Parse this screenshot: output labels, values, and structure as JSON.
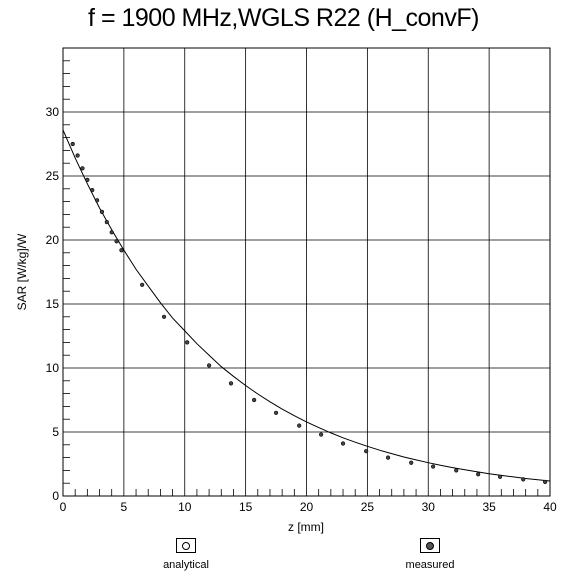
{
  "chart_data": {
    "type": "line",
    "title": "f = 1900 MHz,WGLS R22 (H_convF)",
    "xlabel": "z [mm]",
    "ylabel": "SAR [W/kg]/W",
    "xlim": [
      0,
      40
    ],
    "ylim": [
      0,
      35
    ],
    "x_ticks": [
      0,
      5,
      10,
      15,
      20,
      25,
      30,
      35,
      40
    ],
    "y_ticks": [
      0,
      5,
      10,
      15,
      20,
      25,
      30
    ],
    "grid": true,
    "legend_position": "bottom",
    "series": [
      {
        "name": "analytical",
        "style": "line",
        "x": [
          0,
          1,
          2,
          3,
          4,
          5,
          6,
          7,
          8,
          9,
          10,
          11,
          12,
          13,
          14,
          15,
          16,
          17,
          18,
          19,
          20,
          21,
          22,
          23,
          24,
          25,
          26,
          27,
          28,
          29,
          30,
          31,
          32,
          33,
          34,
          35,
          36,
          37,
          38,
          39,
          40
        ],
        "y": [
          28.6,
          26.4,
          24.4,
          22.5,
          20.8,
          19.2,
          17.7,
          16.4,
          15.1,
          13.9,
          12.9,
          11.9,
          11.0,
          10.1,
          9.35,
          8.63,
          7.97,
          7.36,
          6.79,
          6.27,
          5.79,
          5.34,
          4.93,
          4.55,
          4.2,
          3.88,
          3.58,
          3.31,
          3.05,
          2.82,
          2.6,
          2.4,
          2.22,
          2.05,
          1.89,
          1.74,
          1.61,
          1.49,
          1.37,
          1.27,
          1.17
        ]
      },
      {
        "name": "measured",
        "style": "markers",
        "x": [
          0.8,
          1.2,
          1.6,
          2.0,
          2.4,
          2.8,
          3.2,
          3.6,
          4.0,
          4.4,
          4.8,
          6.5,
          8.3,
          10.2,
          12.0,
          13.8,
          15.7,
          17.5,
          19.4,
          21.2,
          23.0,
          24.9,
          26.7,
          28.6,
          30.4,
          32.3,
          34.1,
          35.9,
          37.8,
          39.6
        ],
        "y": [
          27.5,
          26.6,
          25.6,
          24.7,
          23.9,
          23.1,
          22.2,
          21.4,
          20.6,
          19.9,
          19.2,
          16.5,
          14.0,
          12.0,
          10.2,
          8.8,
          7.5,
          6.5,
          5.5,
          4.8,
          4.1,
          3.5,
          3.0,
          2.6,
          2.3,
          2.0,
          1.7,
          1.5,
          1.3,
          1.1
        ]
      }
    ]
  },
  "legend": {
    "analytical_label": "analytical",
    "measured_label": "measured"
  }
}
